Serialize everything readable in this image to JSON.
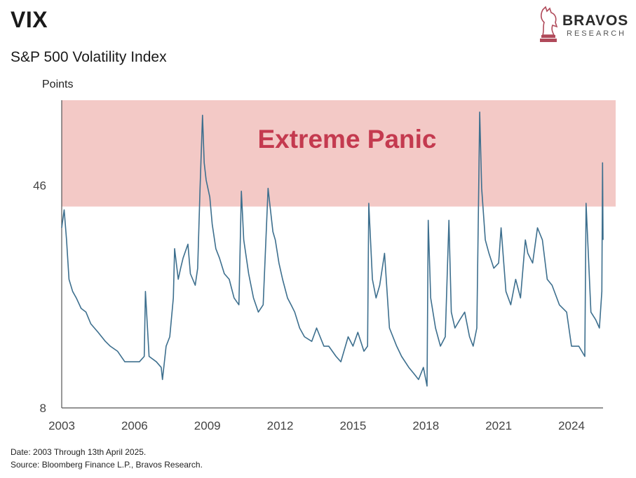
{
  "header": {
    "title": "VIX",
    "subtitle": "S&P 500 Volatility Index"
  },
  "logo": {
    "name": "BRAVOS",
    "sub": "RESEARCH"
  },
  "footer": {
    "date_note": "Date: 2003 Through 13th April 2025.",
    "source_note": "Source: Bloomberg Finance L.P., Bravos Research."
  },
  "colors": {
    "line": "#3d6f8e",
    "panic_band": "#f3c9c6",
    "panic_text": "#c43a4f",
    "axis": "#555555"
  },
  "chart_data": {
    "type": "line",
    "title": "S&P 500 Volatility Index",
    "ylabel": "Points",
    "scale": "log",
    "ylim": [
      8,
      90
    ],
    "xlim": [
      2003.0,
      2025.3
    ],
    "y_ticks": [
      "46",
      "8"
    ],
    "y_tick_values": [
      46,
      8
    ],
    "x_ticks": [
      "2003",
      "2006",
      "2009",
      "2012",
      "2015",
      "2018",
      "2021",
      "2024"
    ],
    "x_tick_values": [
      2003,
      2006,
      2009,
      2012,
      2015,
      2018,
      2021,
      2024
    ],
    "annotation": {
      "text": "Extreme Panic",
      "band_low": 39,
      "band_high": 90
    },
    "series": [
      {
        "x": [
          2003.0,
          2003.1,
          2003.2,
          2003.3,
          2003.45,
          2003.6,
          2003.8,
          2004.0,
          2004.2,
          2004.5,
          2004.8,
          2005.0,
          2005.3,
          2005.6,
          2005.9,
          2006.2,
          2006.4,
          2006.45,
          2006.6,
          2006.9,
          2007.1,
          2007.15,
          2007.3,
          2007.45,
          2007.6,
          2007.65,
          2007.8,
          2007.9,
          2008.0,
          2008.2,
          2008.3,
          2008.5,
          2008.6,
          2008.7,
          2008.8,
          2008.87,
          2008.95,
          2009.1,
          2009.2,
          2009.35,
          2009.5,
          2009.7,
          2009.9,
          2010.1,
          2010.3,
          2010.4,
          2010.5,
          2010.7,
          2010.9,
          2011.1,
          2011.3,
          2011.5,
          2011.6,
          2011.7,
          2011.8,
          2011.95,
          2012.1,
          2012.3,
          2012.45,
          2012.6,
          2012.8,
          2013.0,
          2013.3,
          2013.5,
          2013.8,
          2014.0,
          2014.3,
          2014.5,
          2014.8,
          2015.0,
          2015.2,
          2015.45,
          2015.6,
          2015.65,
          2015.8,
          2015.95,
          2016.1,
          2016.3,
          2016.5,
          2016.8,
          2017.0,
          2017.3,
          2017.5,
          2017.7,
          2017.9,
          2018.05,
          2018.1,
          2018.2,
          2018.4,
          2018.6,
          2018.8,
          2018.95,
          2019.05,
          2019.2,
          2019.4,
          2019.6,
          2019.8,
          2019.95,
          2020.1,
          2020.17,
          2020.22,
          2020.3,
          2020.45,
          2020.6,
          2020.8,
          2021.0,
          2021.1,
          2021.3,
          2021.5,
          2021.7,
          2021.9,
          2022.1,
          2022.2,
          2022.4,
          2022.6,
          2022.8,
          2023.0,
          2023.2,
          2023.5,
          2023.8,
          2024.0,
          2024.3,
          2024.55,
          2024.6,
          2024.8,
          2025.0,
          2025.15,
          2025.25,
          2025.28,
          2025.3
        ],
        "values": [
          33,
          38,
          30,
          22,
          20,
          19,
          17.5,
          17,
          15.5,
          14.5,
          13.5,
          13,
          12.5,
          11.5,
          11.5,
          11.5,
          12,
          20,
          12,
          11.5,
          11,
          10,
          13,
          14,
          19,
          28,
          22,
          24,
          26,
          29,
          23,
          21,
          24,
          45,
          80,
          55,
          48,
          42,
          34,
          28,
          26,
          23,
          22,
          19,
          18,
          44,
          30,
          23,
          19,
          17,
          18,
          45,
          38,
          32,
          30,
          25,
          22,
          19,
          18,
          17,
          15,
          14,
          13.5,
          15,
          13,
          13,
          12,
          11.5,
          14,
          13,
          14.5,
          12.5,
          13,
          40,
          22,
          19,
          21,
          27,
          15,
          13,
          12,
          11,
          10.5,
          10,
          11,
          9.5,
          35,
          19,
          15,
          13,
          14,
          35,
          17,
          15,
          16,
          17,
          14,
          13,
          15,
          40,
          82,
          45,
          30,
          27,
          24,
          25,
          33,
          20,
          18,
          22,
          19,
          30,
          27,
          25,
          33,
          30,
          22,
          21,
          18,
          17,
          13,
          13,
          12,
          40,
          17,
          16,
          15,
          20,
          55,
          30
        ]
      }
    ]
  }
}
